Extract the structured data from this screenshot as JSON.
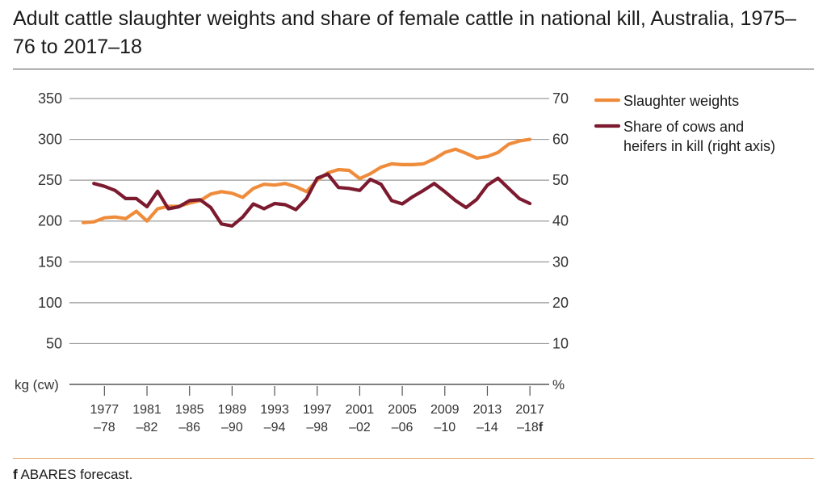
{
  "chart_data": {
    "type": "line",
    "title": "Adult cattle slaughter weights and share of female cattle in national kill, Australia, 1975–76 to 2017–18",
    "y_left": {
      "label": "kg (cw)",
      "range": [
        0,
        350
      ],
      "ticks": [
        "50",
        "100",
        "150",
        "200",
        "250",
        "300",
        "350"
      ]
    },
    "y_right": {
      "label": "%",
      "range": [
        0,
        70
      ],
      "ticks": [
        "10",
        "20",
        "30",
        "40",
        "50",
        "60",
        "70"
      ]
    },
    "x_ticks": [
      {
        "top": "1977",
        "bottom": "–78",
        "index": 2
      },
      {
        "top": "1981",
        "bottom": "–82",
        "index": 6
      },
      {
        "top": "1985",
        "bottom": "–86",
        "index": 10
      },
      {
        "top": "1989",
        "bottom": "–90",
        "index": 14
      },
      {
        "top": "1993",
        "bottom": "–94",
        "index": 18
      },
      {
        "top": "1997",
        "bottom": "–98",
        "index": 22
      },
      {
        "top": "2001",
        "bottom": "–02",
        "index": 26
      },
      {
        "top": "2005",
        "bottom": "–06",
        "index": 30
      },
      {
        "top": "2009",
        "bottom": "–10",
        "index": 34
      },
      {
        "top": "2013",
        "bottom": "–14",
        "index": 38
      },
      {
        "top": "2017",
        "bottom": "–18",
        "suffix": "f",
        "index": 42
      }
    ],
    "x_first_year": "1975–76",
    "x_last_year": "2017–18",
    "grid": true,
    "legend_placement": "right",
    "series": [
      {
        "name": "Slaughter weights",
        "axis": "left",
        "color": "#ef8c3c",
        "start_index": 0,
        "values": [
          198,
          199,
          204,
          205,
          203,
          212,
          200,
          215,
          218,
          218,
          222,
          225,
          233,
          236,
          234,
          229,
          240,
          245,
          244,
          246,
          242,
          236,
          250,
          259,
          263,
          262,
          252,
          258,
          266,
          270,
          269,
          269,
          270,
          276,
          284,
          288,
          283,
          277,
          279,
          284,
          294,
          298,
          300
        ]
      },
      {
        "name": "Share of cows and heifers in kill (right axis)",
        "axis": "right",
        "color": "#7c1a2f",
        "start_index": 1,
        "values": [
          49.2,
          48.5,
          47.5,
          45.5,
          45.5,
          43.5,
          47.3,
          43.0,
          43.5,
          45.0,
          45.2,
          43.3,
          39.3,
          38.8,
          41.0,
          44.2,
          43.0,
          44.3,
          44.0,
          42.8,
          45.5,
          50.5,
          51.5,
          48.2,
          48.0,
          47.5,
          50.2,
          49.0,
          45.0,
          44.2,
          46.0,
          47.5,
          49.2,
          47.2,
          45.0,
          43.3,
          45.3,
          48.8,
          50.5,
          48.0,
          45.5,
          44.3
        ]
      }
    ]
  },
  "footnote": {
    "marker": "f",
    "text": "ABARES forecast."
  }
}
